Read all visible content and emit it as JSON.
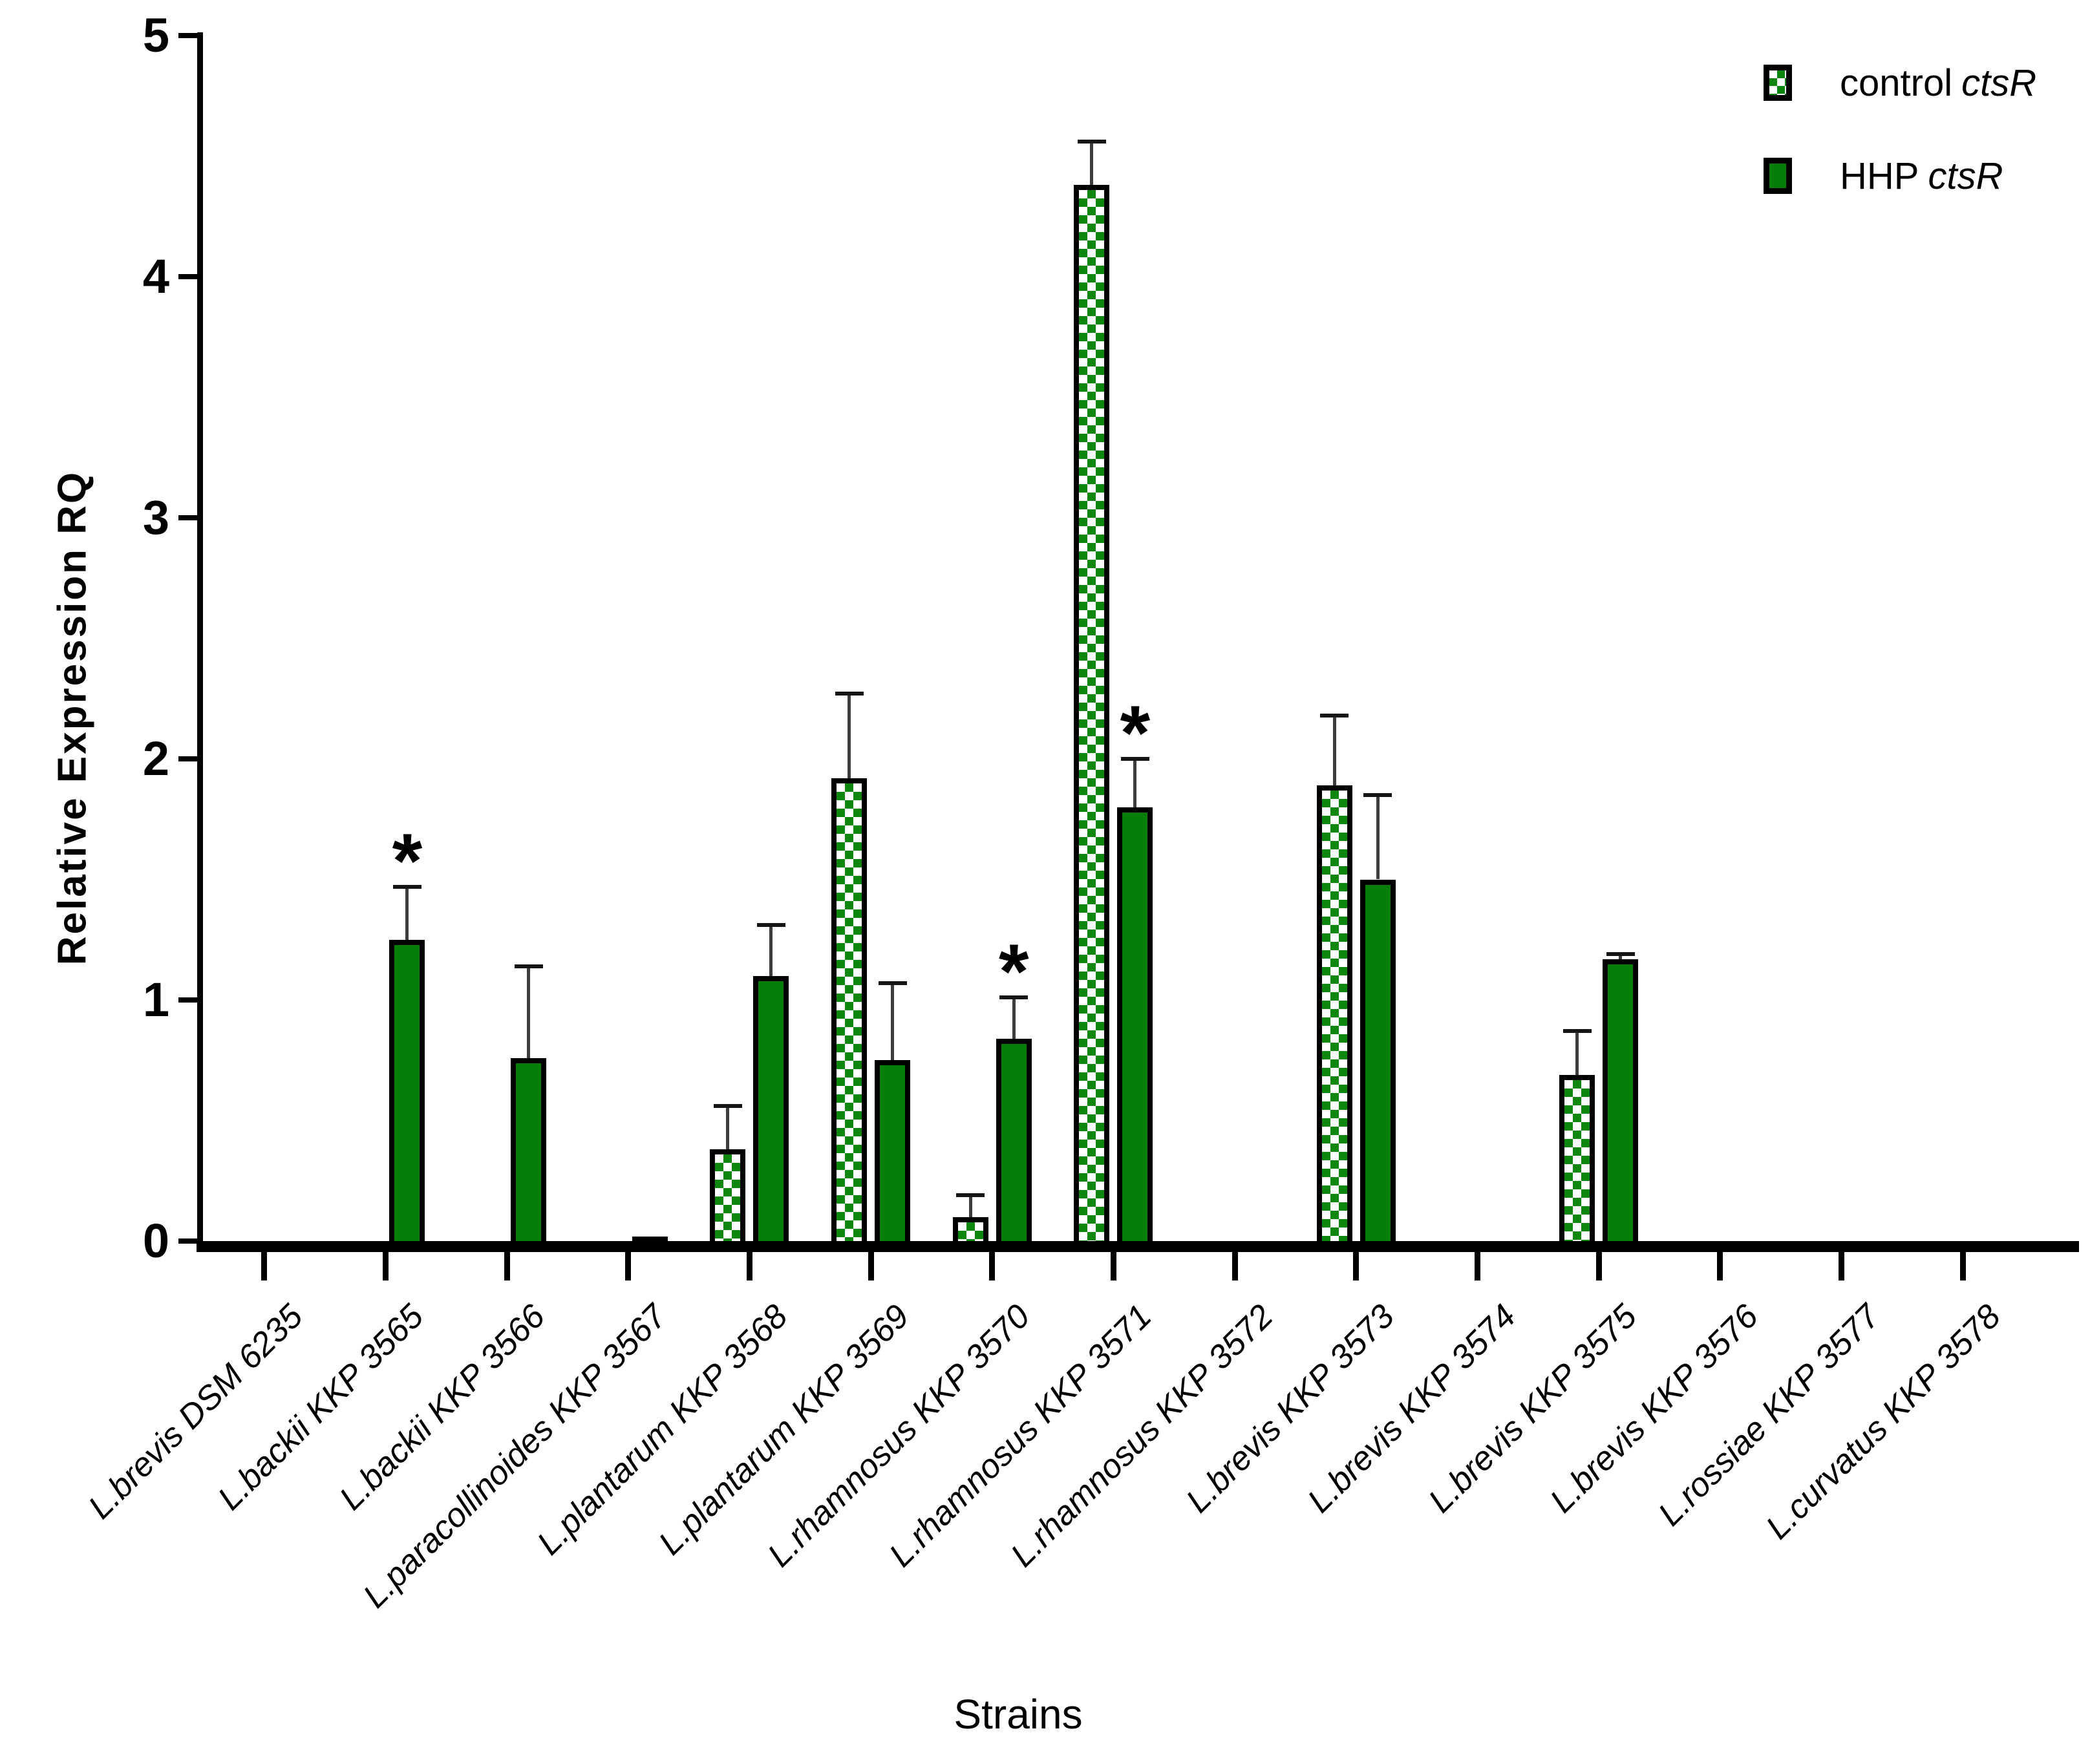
{
  "chart_data": {
    "type": "bar",
    "title": "",
    "xlabel": "Strains",
    "ylabel": "Relative Expression RQ",
    "ylim": [
      0,
      5
    ],
    "yticks": [
      0,
      1,
      2,
      3,
      4,
      5
    ],
    "grid": "off",
    "legend_position": "top-right",
    "categories": [
      "L.brevis DSM 6235",
      "L.backii KKP 3565",
      "L.backii KKP 3566",
      "L.paracollinoides KKP 3567",
      "L.plantarum KKP 3568",
      "L.plantarum KKP 3569",
      "L.rhamnosus KKP 3570",
      "L.rhamnosus KKP 3571",
      "L.rhamnosus KKP 3572",
      "L.brevis KKP 3573",
      "L.brevis KKP 3574",
      "L.brevis KKP 3575",
      "L.brevis KKP 3576",
      "L.rossiae KKP 3577",
      "L.curvatus KKP 3578"
    ],
    "series": [
      {
        "key": "control",
        "label_prefix": "control",
        "label_gene": "ctsR",
        "pattern": "checker",
        "values": [
          0,
          0,
          0,
          0,
          0.38,
          1.92,
          0.1,
          4.38,
          0,
          1.89,
          0,
          0.69,
          0,
          0,
          0
        ],
        "errors": [
          0,
          0,
          0,
          0,
          0.18,
          0.35,
          0.09,
          0.18,
          0,
          0.29,
          0,
          0.18,
          0,
          0,
          0
        ],
        "asterisks": [
          false,
          false,
          false,
          false,
          false,
          false,
          false,
          false,
          false,
          false,
          false,
          false,
          false,
          false,
          false
        ]
      },
      {
        "key": "hhp",
        "label_prefix": "HHP",
        "label_gene": "ctsR",
        "pattern": "solid",
        "values": [
          0,
          1.25,
          0.76,
          0.02,
          1.1,
          0.75,
          0.84,
          1.8,
          0,
          1.5,
          0,
          1.17,
          0,
          0,
          0
        ],
        "errors": [
          0,
          0.22,
          0.38,
          0,
          0.21,
          0.32,
          0.17,
          0.2,
          0,
          0.35,
          0,
          0.02,
          0,
          0,
          0
        ],
        "asterisks": [
          false,
          true,
          false,
          false,
          false,
          false,
          true,
          true,
          false,
          false,
          false,
          false,
          false,
          false,
          false
        ]
      }
    ],
    "annotations": {
      "significance_symbol": "*",
      "significant_bars": [
        "L.backii KKP 3565 HHP",
        "L.rhamnosus KKP 3570 HHP",
        "L.rhamnosus KKP 3571 HHP"
      ]
    },
    "colors": {
      "solid_green": "#077e07",
      "checker_green": "#0e870e",
      "checker_white": "#ffffff",
      "axis": "#000000",
      "error_line": "#3d3d3d",
      "error_cap": "#151515",
      "background": "#ffffff"
    }
  }
}
